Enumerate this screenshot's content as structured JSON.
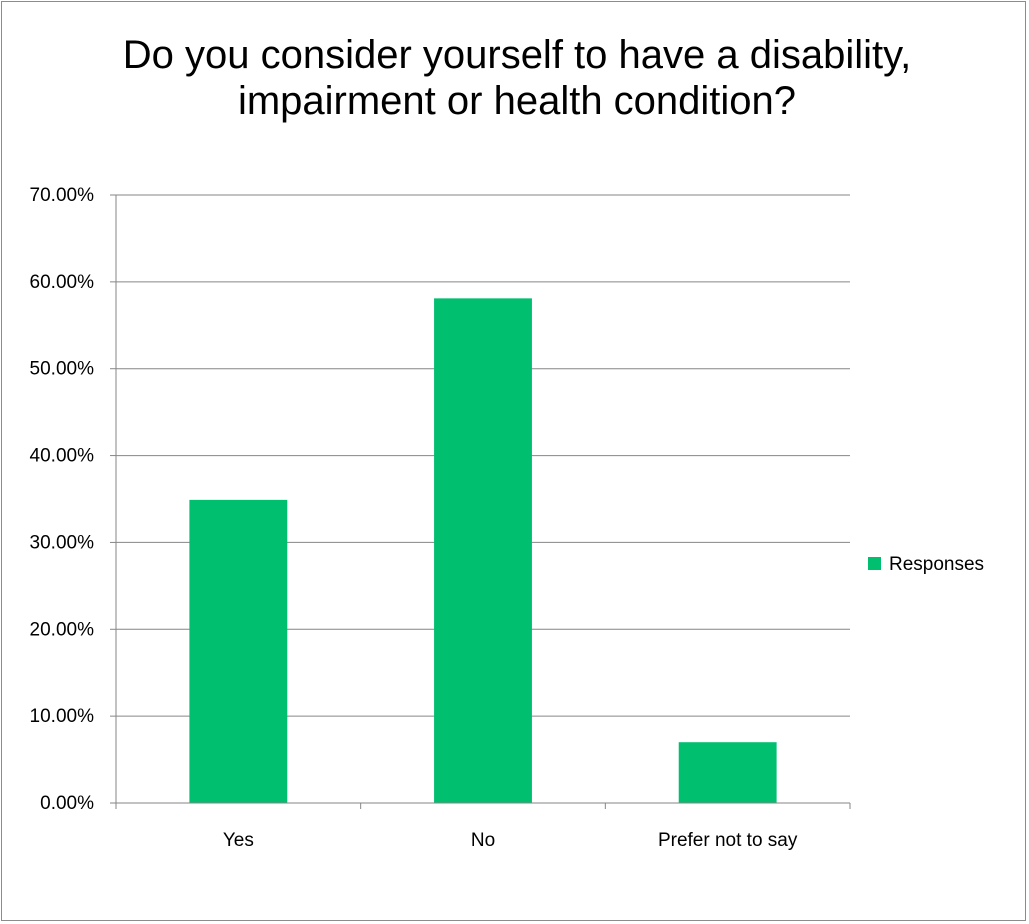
{
  "chart_data": {
    "type": "bar",
    "title": "Do you consider yourself to have a disability, impairment or health condition?",
    "categories": [
      "Yes",
      "No",
      "Prefer not to say"
    ],
    "series": [
      {
        "name": "Responses",
        "values": [
          34.9,
          58.1,
          7.0
        ]
      }
    ],
    "ylim": [
      0,
      70
    ],
    "y_ticks": [
      "0.00%",
      "10.00%",
      "20.00%",
      "30.00%",
      "40.00%",
      "50.00%",
      "60.00%",
      "70.00%"
    ],
    "xlabel": "",
    "ylabel": "",
    "grid": true,
    "legend_position": "right",
    "colors": {
      "bar": "#00bf6f",
      "grid": "#868686",
      "axis": "#868686"
    }
  }
}
